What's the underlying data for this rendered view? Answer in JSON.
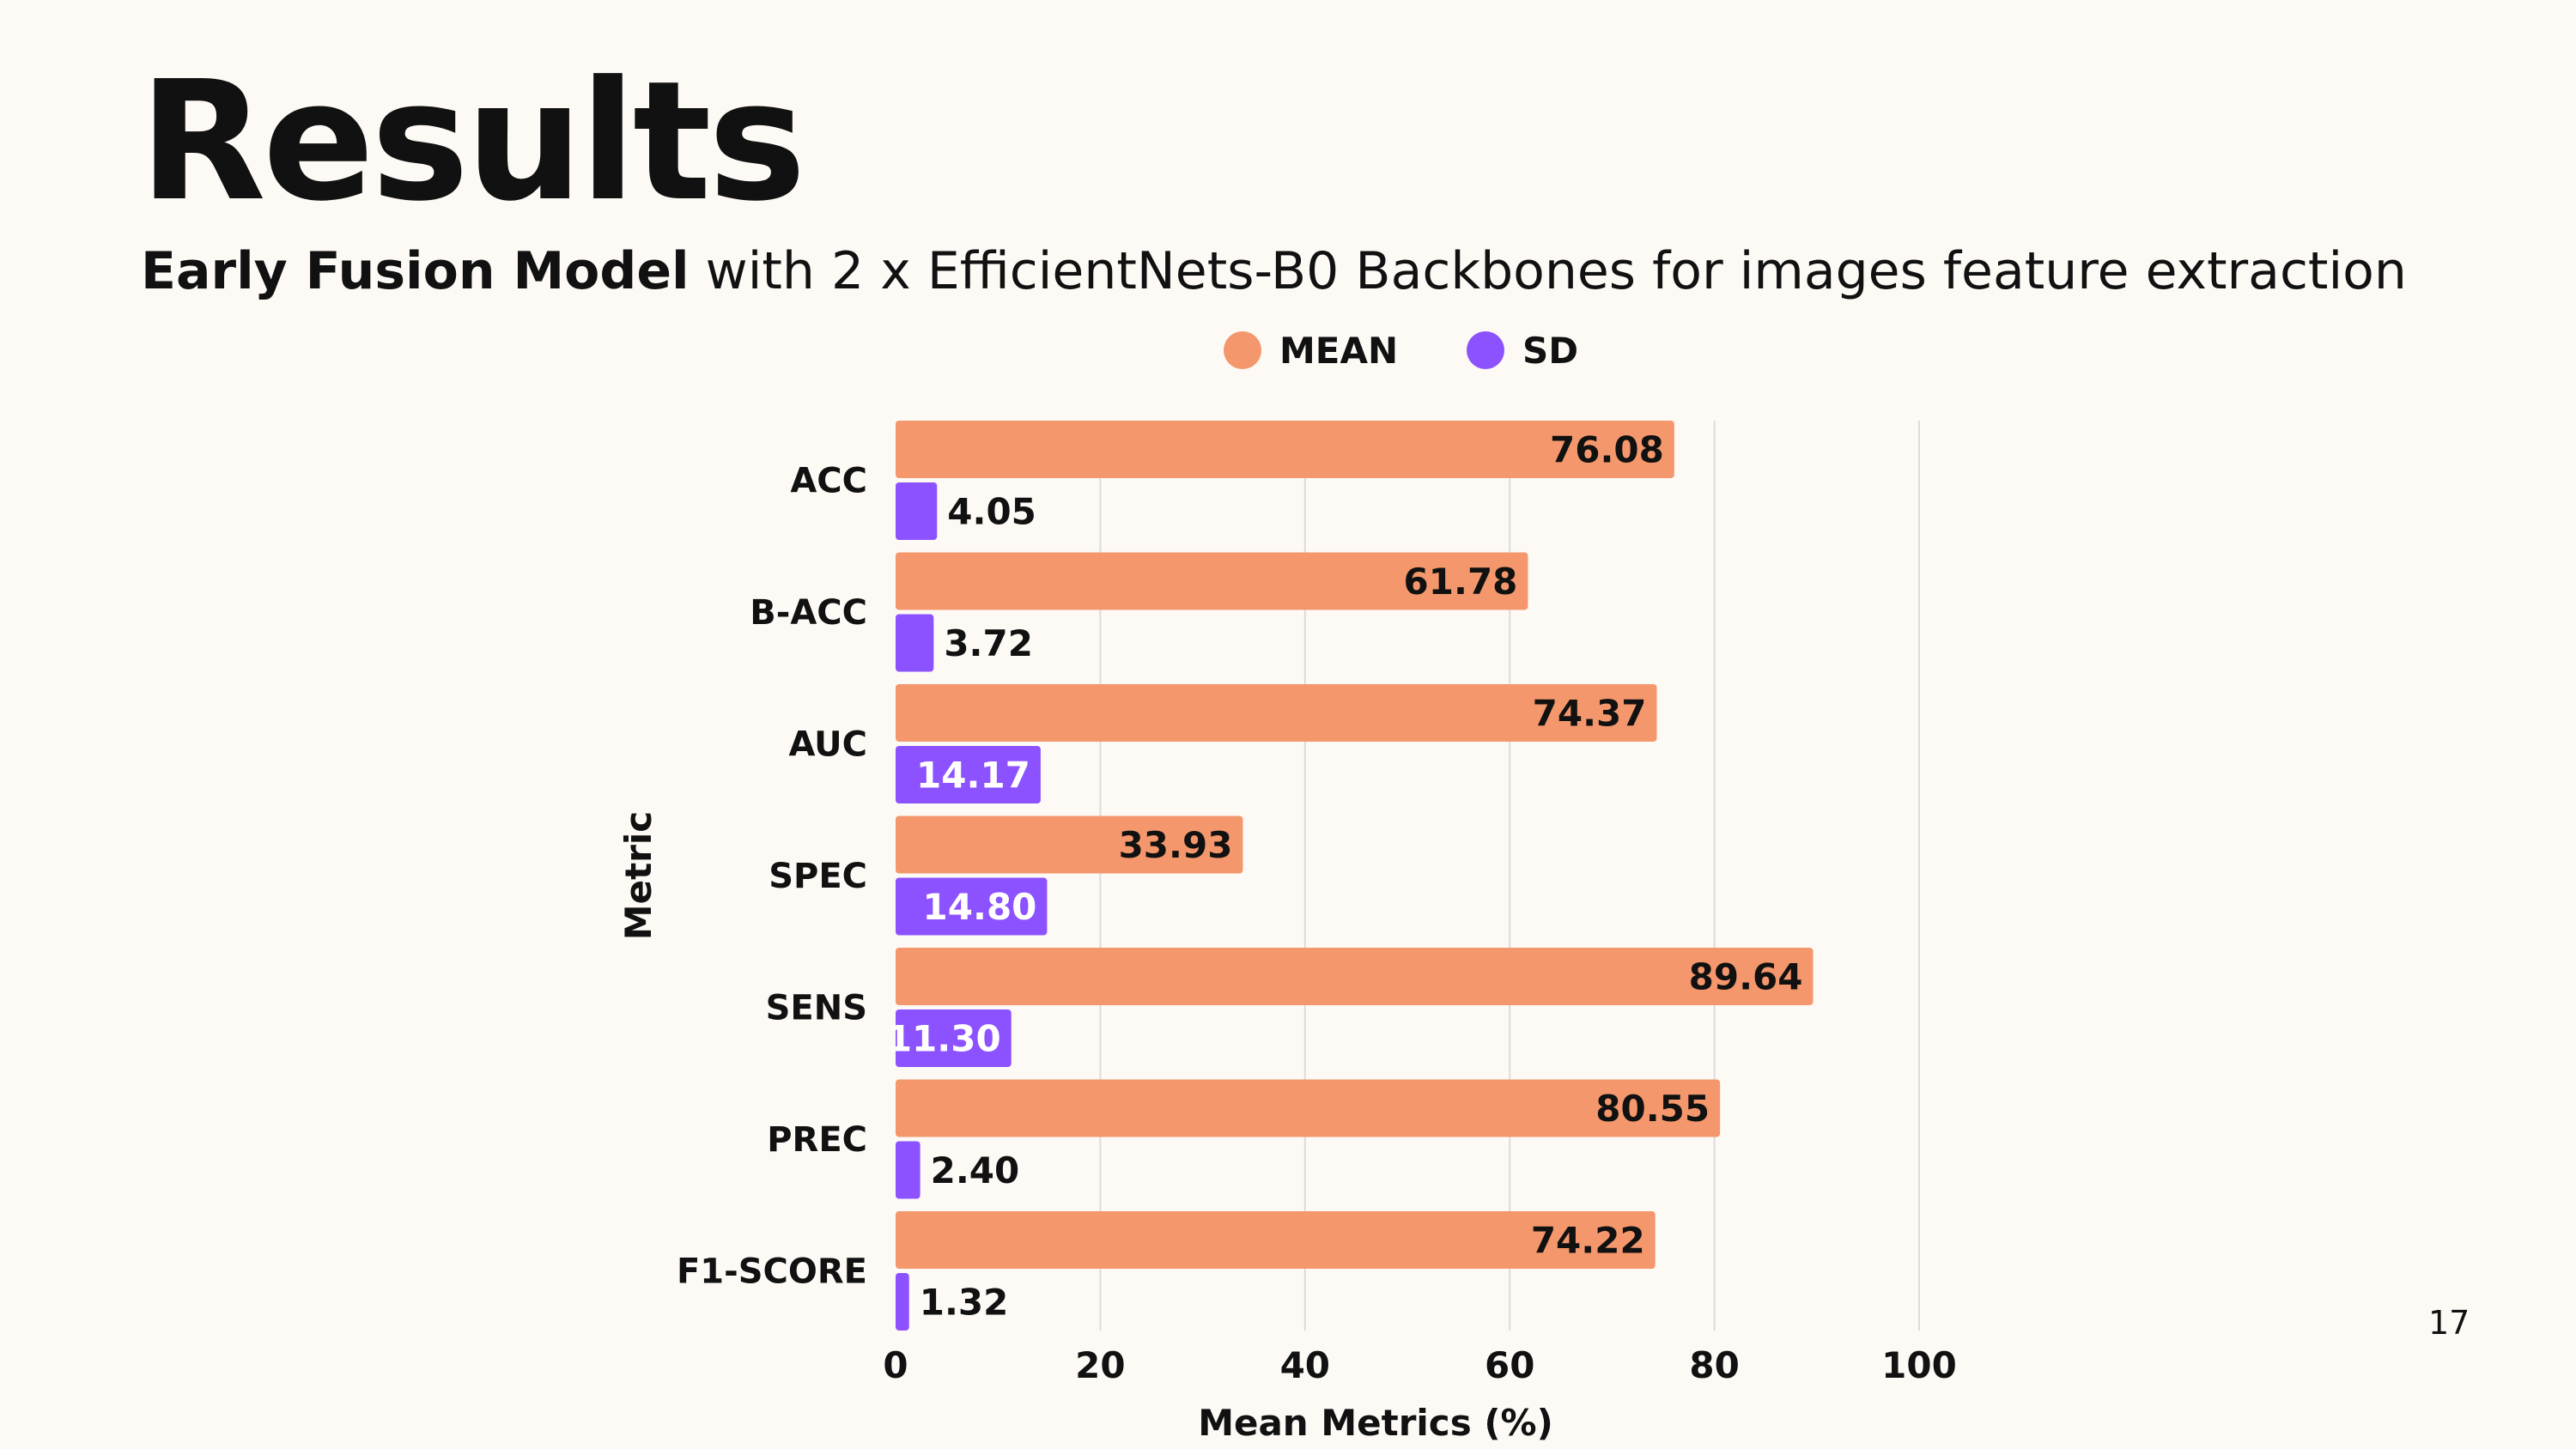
{
  "slide": {
    "title": "Results",
    "subtitle_bold": "Early Fusion Model",
    "subtitle_rest": " with 2 x EfficientNets-B0 Backbones for images feature extraction",
    "page_number": "17"
  },
  "colors": {
    "mean": "#f4976c",
    "sd": "#8c52ff",
    "background": "#fdfaf5",
    "grid": "#dcdcdc",
    "text": "#111111",
    "label_on_sd_bar": "#ffffff"
  },
  "chart_data": {
    "type": "bar",
    "orientation": "horizontal",
    "categories": [
      "ACC",
      "B-ACC",
      "AUC",
      "SPEC",
      "SENS",
      "PREC",
      "F1-SCORE"
    ],
    "series": [
      {
        "name": "MEAN",
        "values": [
          76.08,
          61.78,
          74.37,
          33.93,
          89.64,
          80.55,
          74.22
        ],
        "labels": [
          "76.08",
          "61.78",
          "74.37",
          "33.93",
          "89.64",
          "80.55",
          "74.22"
        ]
      },
      {
        "name": "SD",
        "values": [
          4.05,
          3.72,
          14.17,
          14.8,
          11.3,
          2.4,
          1.32
        ],
        "labels": [
          "4.05",
          "3.72",
          "14.17",
          "14.80",
          "11.30",
          "2.40",
          "1.32"
        ]
      }
    ],
    "xlabel": "Mean Metrics (%)",
    "ylabel": "Metric",
    "xlim": [
      0,
      100
    ],
    "xticks": [
      "0",
      "20",
      "40",
      "60",
      "80",
      "100"
    ],
    "grid": true,
    "legend_position": "top"
  }
}
